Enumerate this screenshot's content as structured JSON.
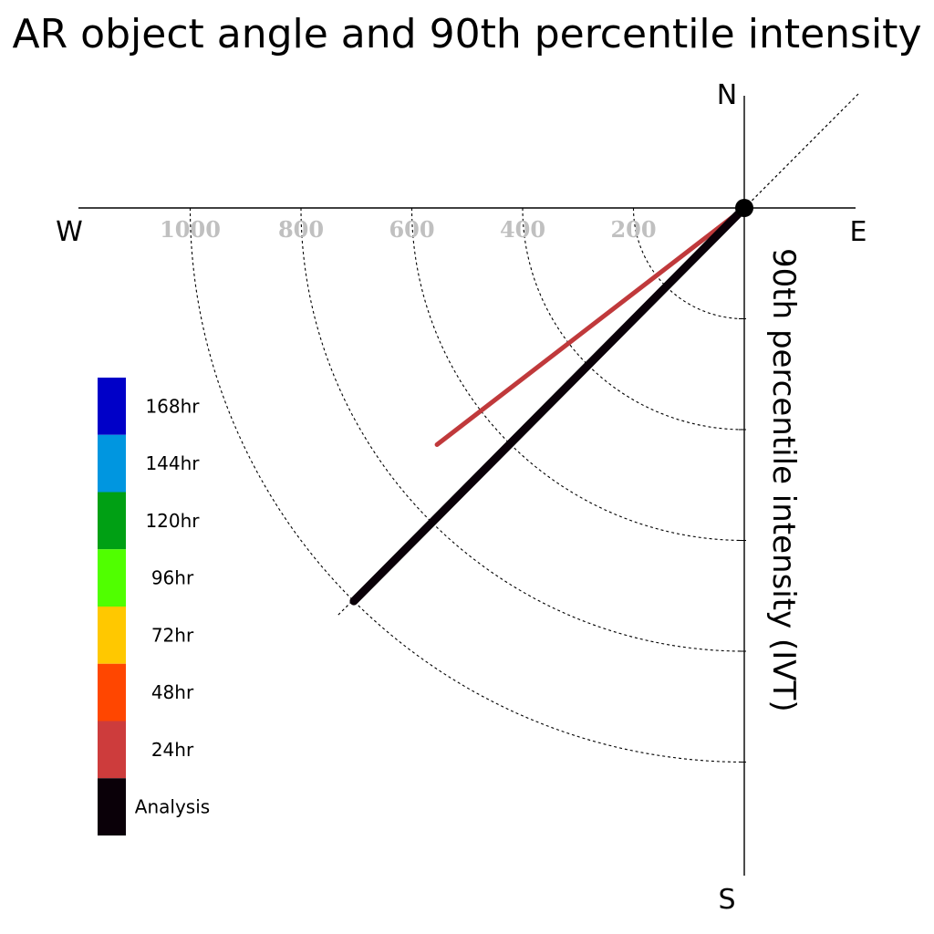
{
  "chart_data": {
    "type": "polar-line",
    "title": "AR object angle and 90th percentile intensity",
    "ylabel": "90th percentile intensity (IVT)",
    "directions": {
      "north": "N",
      "south": "S",
      "east": "E",
      "west": "W"
    },
    "radial_ticks": [
      200,
      400,
      600,
      800,
      1000
    ],
    "radial_tick_labels": [
      "200",
      "400",
      "600",
      "800",
      "1000"
    ],
    "legend": [
      {
        "label": "168hr",
        "color": "#0000c8"
      },
      {
        "label": "144hr",
        "color": "#0096e0"
      },
      {
        "label": "120hr",
        "color": "#00a014"
      },
      {
        "label": "96hr",
        "color": "#50ff00"
      },
      {
        "label": "72hr",
        "color": "#ffc800"
      },
      {
        "label": "48hr",
        "color": "#ff4600"
      },
      {
        "label": "24hr",
        "color": "#cd3c3c"
      },
      {
        "label": "Analysis",
        "color": "#0a0008"
      }
    ],
    "series": [
      {
        "name": "24hr",
        "color": "#c0393b",
        "intensity": 700,
        "angle_deg_below_west": 37.6
      },
      {
        "name": "Analysis",
        "color": "#0a0008",
        "intensity": 1000,
        "angle_deg_below_west": 45.2
      }
    ]
  }
}
